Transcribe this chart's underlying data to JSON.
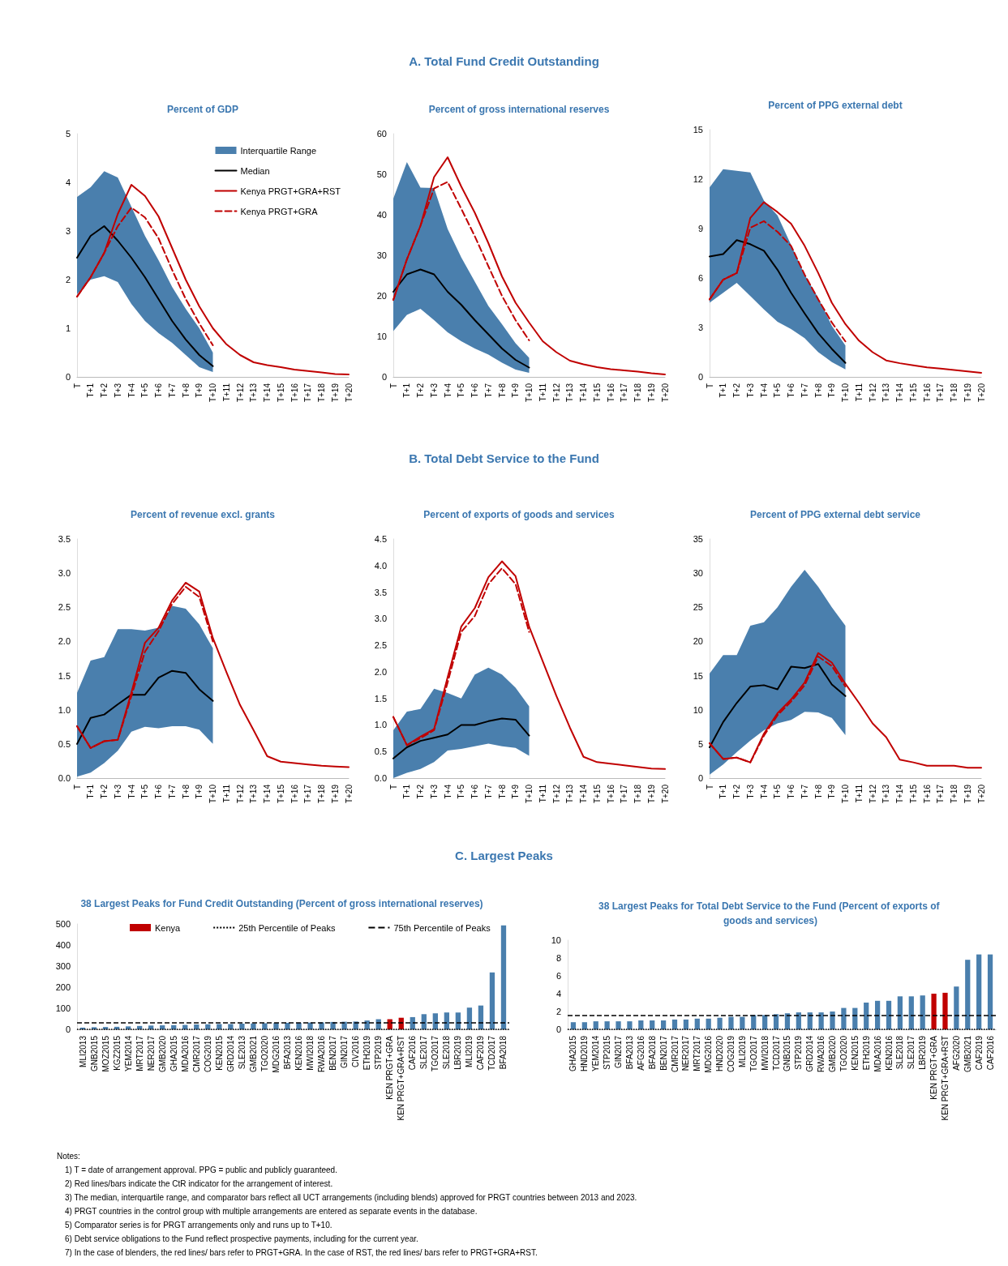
{
  "chart_data": [
    {
      "type": "line",
      "title": "Percent of GDP",
      "annotations": [
        "A. Total Fund Credit Outstanding"
      ],
      "legend": "top right",
      "categories": [
        "T",
        "T+1",
        "T+2",
        "T+3",
        "T+4",
        "T+5",
        "T+6",
        "T+7",
        "T+8",
        "T+9",
        "T+10",
        "T+11",
        "T+12",
        "T+13",
        "T+14",
        "T+15",
        "T+16",
        "T+17",
        "T+18",
        "T+19",
        "T+20"
      ],
      "ylim": [
        0,
        5
      ],
      "yticks": [
        0,
        1,
        2,
        3,
        4,
        5
      ],
      "series": [
        {
          "name": "Interquartile Range",
          "type": "area",
          "color": "#4a7fad",
          "values": [
            null,
            null,
            null,
            null,
            null,
            null,
            null,
            null,
            null,
            null,
            null,
            null,
            null,
            null,
            null,
            null,
            null,
            null,
            null,
            null,
            null
          ],
          "lower": [
            1.7,
            2.0,
            2.07,
            1.95,
            1.5,
            1.15,
            0.9,
            0.7,
            0.45,
            0.2,
            0.1,
            null,
            null,
            null,
            null,
            null,
            null,
            null,
            null,
            null,
            null
          ],
          "upper": [
            3.7,
            3.9,
            4.23,
            4.1,
            3.5,
            2.9,
            2.4,
            1.85,
            1.4,
            1.0,
            0.5,
            null,
            null,
            null,
            null,
            null,
            null,
            null,
            null,
            null,
            null
          ]
        },
        {
          "name": "Median",
          "type": "line",
          "color": "#000000",
          "values": [
            2.45,
            2.9,
            3.1,
            2.8,
            2.45,
            2.05,
            1.6,
            1.15,
            0.77,
            0.45,
            0.22,
            null,
            null,
            null,
            null,
            null,
            null,
            null,
            null,
            null,
            null
          ]
        },
        {
          "name": "Kenya PRGT+GRA+RST",
          "type": "line",
          "color": "#c00000",
          "values": [
            1.65,
            2.05,
            2.55,
            3.35,
            3.95,
            3.72,
            3.3,
            2.65,
            2.0,
            1.45,
            1.0,
            0.67,
            0.45,
            0.3,
            0.24,
            0.2,
            0.15,
            0.12,
            0.09,
            0.06,
            0.05
          ]
        },
        {
          "name": "Kenya PRGT+GRA",
          "type": "line",
          "color": "#c00000",
          "line_style": "dashed",
          "values": [
            1.65,
            2.05,
            2.55,
            3.1,
            3.48,
            3.28,
            2.85,
            2.2,
            1.6,
            1.1,
            0.65,
            null,
            null,
            null,
            null,
            null,
            null,
            null,
            null,
            null,
            null
          ]
        }
      ]
    },
    {
      "type": "line",
      "title": "Percent of gross international reserves",
      "categories": [
        "T",
        "T+1",
        "T+2",
        "T+3",
        "T+4",
        "T+5",
        "T+6",
        "T+7",
        "T+8",
        "T+9",
        "T+10",
        "T+11",
        "T+12",
        "T+13",
        "T+14",
        "T+15",
        "T+16",
        "T+17",
        "T+18",
        "T+19",
        "T+20"
      ],
      "ylim": [
        0,
        60
      ],
      "yticks": [
        0,
        10,
        20,
        30,
        40,
        50,
        60
      ],
      "series": [
        {
          "type": "area",
          "color": "#4a7fad",
          "values": [
            null,
            null,
            null,
            null,
            null,
            null,
            null,
            null,
            null,
            null,
            null,
            null,
            null,
            null,
            null,
            null,
            null,
            null,
            null,
            null,
            null
          ],
          "lower": [
            11.3,
            15.3,
            16.8,
            14,
            11,
            8.8,
            7,
            5.5,
            3.5,
            1.8,
            1.0,
            null,
            null,
            null,
            null,
            null,
            null,
            null,
            null,
            null,
            null
          ],
          "upper": [
            44,
            53,
            46.7,
            46.6,
            36.5,
            29.5,
            23.5,
            17.5,
            13,
            8.3,
            4.7,
            null,
            null,
            null,
            null,
            null,
            null,
            null,
            null,
            null,
            null
          ]
        },
        {
          "type": "line",
          "color": "#000000",
          "values": [
            21,
            25.3,
            26.5,
            25.3,
            21,
            17.8,
            14,
            10.5,
            7,
            4.2,
            2.3,
            null,
            null,
            null,
            null,
            null,
            null,
            null,
            null,
            null,
            null
          ]
        },
        {
          "type": "line",
          "color": "#c00000",
          "values": [
            19,
            29,
            37.3,
            49.3,
            54.2,
            47,
            40.5,
            33,
            24.8,
            18.3,
            13.4,
            8.8,
            6.1,
            4,
            3.1,
            2.4,
            1.9,
            1.6,
            1.3,
            0.9,
            0.6
          ]
        },
        {
          "type": "line",
          "color": "#c00000",
          "line_style": "dashed",
          "values": [
            19,
            29,
            37.3,
            46.5,
            48.1,
            41.5,
            34.7,
            27.3,
            20,
            14,
            9.0,
            null,
            null,
            null,
            null,
            null,
            null,
            null,
            null,
            null,
            null
          ]
        }
      ]
    },
    {
      "type": "line",
      "title": "Percent of PPG external debt",
      "categories": [
        "T",
        "T+1",
        "T+2",
        "T+3",
        "T+4",
        "T+5",
        "T+6",
        "T+7",
        "T+8",
        "T+9",
        "T+10",
        "T+11",
        "T+12",
        "T+13",
        "T+14",
        "T+15",
        "T+16",
        "T+17",
        "T+18",
        "T+19",
        "T+20"
      ],
      "ylim": [
        0,
        15
      ],
      "yticks": [
        0,
        3,
        6,
        9,
        12,
        15
      ],
      "series": [
        {
          "type": "area",
          "color": "#4a7fad",
          "values": [
            null,
            null,
            null,
            null,
            null,
            null,
            null,
            null,
            null,
            null,
            null,
            null,
            null,
            null,
            null,
            null,
            null,
            null,
            null,
            null,
            null
          ],
          "lower": [
            4.5,
            5.1,
            5.7,
            4.9,
            4.1,
            3.35,
            2.9,
            2.35,
            1.5,
            0.9,
            0.45,
            null,
            null,
            null,
            null,
            null,
            null,
            null,
            null,
            null,
            null
          ],
          "upper": [
            11.5,
            12.6,
            12.5,
            12.4,
            10.7,
            9.8,
            8.0,
            6.2,
            4.8,
            3.1,
            1.9,
            null,
            null,
            null,
            null,
            null,
            null,
            null,
            null,
            null,
            null
          ]
        },
        {
          "type": "line",
          "color": "#000000",
          "values": [
            7.3,
            7.45,
            8.3,
            8.05,
            7.65,
            6.5,
            5.1,
            3.85,
            2.65,
            1.7,
            0.85,
            null,
            null,
            null,
            null,
            null,
            null,
            null,
            null,
            null,
            null
          ]
        },
        {
          "type": "line",
          "color": "#c00000",
          "values": [
            4.7,
            5.9,
            6.3,
            9.65,
            10.6,
            10.0,
            9.3,
            7.95,
            6.3,
            4.5,
            3.2,
            2.2,
            1.5,
            1.0,
            0.83,
            0.7,
            0.58,
            0.5,
            0.42,
            0.33,
            0.25
          ]
        },
        {
          "type": "line",
          "color": "#c00000",
          "line_style": "dashed",
          "values": [
            4.7,
            5.9,
            6.3,
            9.05,
            9.45,
            8.8,
            7.95,
            6.2,
            4.7,
            3.3,
            2.15,
            null,
            null,
            null,
            null,
            null,
            null,
            null,
            null,
            null,
            null
          ]
        }
      ]
    },
    {
      "type": "line",
      "title": "Percent of revenue excl. grants",
      "annotations": [
        "B. Total Debt Service to the Fund"
      ],
      "categories": [
        "T",
        "T+1",
        "T+2",
        "T+3",
        "T+4",
        "T+5",
        "T+6",
        "T+7",
        "T+8",
        "T+9",
        "T+10",
        "T+11",
        "T+12",
        "T+13",
        "T+14",
        "T+15",
        "T+16",
        "T+17",
        "T+18",
        "T+19",
        "T+20"
      ],
      "ylim": [
        0,
        3.5
      ],
      "yticks": [
        {
          "value": 0,
          "label": "0.0"
        },
        {
          "value": 0.5,
          "label": "0.5"
        },
        {
          "value": 1,
          "label": "1.0"
        },
        {
          "value": 1.5,
          "label": "1.5"
        },
        {
          "value": 2,
          "label": "2.0"
        },
        {
          "value": 2.5,
          "label": "2.5"
        },
        {
          "value": 3,
          "label": "3.0"
        },
        {
          "value": 3.5,
          "label": "3.5"
        }
      ],
      "series": [
        {
          "type": "area",
          "color": "#4a7fad",
          "values": [
            null,
            null,
            null,
            null,
            null,
            null,
            null,
            null,
            null,
            null,
            null,
            null,
            null,
            null,
            null,
            null,
            null,
            null,
            null,
            null,
            null
          ],
          "lower": [
            0.02,
            0.08,
            0.22,
            0.4,
            0.68,
            0.75,
            0.73,
            0.76,
            0.76,
            0.71,
            0.5,
            null,
            null,
            null,
            null,
            null,
            null,
            null,
            null,
            null,
            null
          ],
          "upper": [
            1.25,
            1.72,
            1.77,
            2.18,
            2.18,
            2.16,
            2.2,
            2.52,
            2.48,
            2.25,
            1.9,
            null,
            null,
            null,
            null,
            null,
            null,
            null,
            null,
            null,
            null
          ]
        },
        {
          "type": "line",
          "color": "#000000",
          "values": [
            0.5,
            0.88,
            0.93,
            1.08,
            1.22,
            1.22,
            1.47,
            1.57,
            1.54,
            1.3,
            1.13,
            null,
            null,
            null,
            null,
            null,
            null,
            null,
            null,
            null,
            null
          ]
        },
        {
          "type": "line",
          "color": "#c00000",
          "values": [
            0.76,
            0.44,
            0.54,
            0.56,
            1.25,
            1.98,
            2.2,
            2.6,
            2.86,
            2.73,
            2.05,
            1.55,
            1.07,
            0.7,
            0.32,
            0.24,
            0.22,
            0.2,
            0.18,
            0.17,
            0.16
          ]
        },
        {
          "type": "line",
          "color": "#c00000",
          "line_style": "dashed",
          "values": [
            0.76,
            0.44,
            0.54,
            0.56,
            1.2,
            1.85,
            2.15,
            2.55,
            2.8,
            2.65,
            2.0,
            null,
            null,
            null,
            null,
            null,
            null,
            null,
            null,
            null,
            null
          ]
        }
      ]
    },
    {
      "type": "line",
      "title": "Percent of exports of goods and services",
      "categories": [
        "T",
        "T+1",
        "T+2",
        "T+3",
        "T+4",
        "T+5",
        "T+6",
        "T+7",
        "T+8",
        "T+9",
        "T+10",
        "T+11",
        "T+12",
        "T+13",
        "T+14",
        "T+15",
        "T+16",
        "T+17",
        "T+18",
        "T+19",
        "T+20"
      ],
      "ylim": [
        0,
        4.5
      ],
      "yticks": [
        {
          "value": 0,
          "label": "0.0"
        },
        {
          "value": 0.5,
          "label": "0.5"
        },
        {
          "value": 1,
          "label": "1.0"
        },
        {
          "value": 1.5,
          "label": "1.5"
        },
        {
          "value": 2,
          "label": "2.0"
        },
        {
          "value": 2.5,
          "label": "2.5"
        },
        {
          "value": 3,
          "label": "3.0"
        },
        {
          "value": 3.5,
          "label": "3.5"
        },
        {
          "value": 4,
          "label": "4.0"
        },
        {
          "value": 4.5,
          "label": "4.5"
        }
      ],
      "series": [
        {
          "type": "area",
          "color": "#4a7fad",
          "values": [
            null,
            null,
            null,
            null,
            null,
            null,
            null,
            null,
            null,
            null,
            null,
            null,
            null,
            null,
            null,
            null,
            null,
            null,
            null,
            null,
            null
          ],
          "lower": [
            0.0,
            0.1,
            0.17,
            0.3,
            0.52,
            0.55,
            0.6,
            0.65,
            0.6,
            0.57,
            0.42,
            null,
            null,
            null,
            null,
            null,
            null,
            null,
            null,
            null,
            null
          ],
          "upper": [
            0.9,
            1.25,
            1.3,
            1.68,
            1.6,
            1.5,
            1.95,
            2.08,
            1.95,
            1.7,
            1.35,
            null,
            null,
            null,
            null,
            null,
            null,
            null,
            null,
            null,
            null
          ]
        },
        {
          "type": "line",
          "color": "#000000",
          "values": [
            0.37,
            0.58,
            0.7,
            0.76,
            0.82,
            1.0,
            1.0,
            1.07,
            1.12,
            1.1,
            0.8,
            null,
            null,
            null,
            null,
            null,
            null,
            null,
            null,
            null,
            null
          ]
        },
        {
          "type": "line",
          "color": "#c00000",
          "values": [
            1.15,
            0.62,
            0.78,
            0.92,
            1.9,
            2.85,
            3.2,
            3.78,
            4.08,
            3.8,
            2.85,
            2.2,
            1.55,
            0.95,
            0.4,
            0.3,
            0.27,
            0.24,
            0.21,
            0.18,
            0.17
          ]
        },
        {
          "type": "line",
          "color": "#c00000",
          "line_style": "dashed",
          "values": [
            1.15,
            0.62,
            0.75,
            0.9,
            1.8,
            2.75,
            3.05,
            3.65,
            3.95,
            3.65,
            2.75,
            null,
            null,
            null,
            null,
            null,
            null,
            null,
            null,
            null,
            null
          ]
        }
      ]
    },
    {
      "type": "line",
      "title": "Percent of PPG external debt service",
      "categories": [
        "T",
        "T+1",
        "T+2",
        "T+3",
        "T+4",
        "T+5",
        "T+6",
        "T+7",
        "T+8",
        "T+9",
        "T+10",
        "T+11",
        "T+12",
        "T+13",
        "T+14",
        "T+15",
        "T+16",
        "T+17",
        "T+18",
        "T+19",
        "T+20"
      ],
      "ylim": [
        0,
        35
      ],
      "yticks": [
        0,
        5,
        10,
        15,
        20,
        25,
        30,
        35
      ],
      "series": [
        {
          "type": "area",
          "color": "#4a7fad",
          "values": [
            null,
            null,
            null,
            null,
            null,
            null,
            null,
            null,
            null,
            null,
            null,
            null,
            null,
            null,
            null,
            null,
            null,
            null,
            null,
            null,
            null
          ],
          "lower": [
            0.5,
            2,
            3.8,
            5.5,
            7,
            8,
            8.5,
            9.7,
            9.6,
            8.8,
            6.3,
            null,
            null,
            null,
            null,
            null,
            null,
            null,
            null,
            null,
            null
          ],
          "upper": [
            15.3,
            18,
            18,
            22.3,
            22.8,
            25,
            28,
            30.5,
            28,
            25,
            22.3,
            null,
            null,
            null,
            null,
            null,
            null,
            null,
            null,
            null,
            null
          ]
        },
        {
          "type": "line",
          "color": "#000000",
          "values": [
            4.5,
            8.2,
            11,
            13.4,
            13.6,
            13,
            16.3,
            16.1,
            16.7,
            13.7,
            12,
            null,
            null,
            null,
            null,
            null,
            null,
            null,
            null,
            null,
            null
          ]
        },
        {
          "type": "line",
          "color": "#c00000",
          "values": [
            5.1,
            2.8,
            3,
            2.3,
            6.5,
            9.5,
            11.5,
            14,
            18.3,
            16.9,
            13.8,
            11,
            8,
            6,
            2.7,
            2.3,
            1.8,
            1.8,
            1.8,
            1.5,
            1.5
          ]
        },
        {
          "type": "line",
          "color": "#c00000",
          "line_style": "dashed",
          "values": [
            5.1,
            2.8,
            3,
            2.3,
            6.2,
            9.2,
            11.2,
            13.6,
            17.8,
            16.4,
            13.4,
            null,
            null,
            null,
            null,
            null,
            null,
            null,
            null,
            null,
            null
          ]
        }
      ]
    },
    {
      "type": "bar",
      "title": "38 Largest Peaks for Fund Credit Outstanding (Percent of gross international reserves)",
      "annotations": [
        "C. Largest Peaks"
      ],
      "legend": "top",
      "categories": [
        "MLI2013",
        "GNB2015",
        "MOZ2015",
        "KGZ2015",
        "YEM2014",
        "MRT2017",
        "NER2017",
        "GMB2020",
        "GHA2015",
        "MDA2016",
        "CMR2017",
        "COG2019",
        "KEN2015",
        "GRD2014",
        "SLE2013",
        "GMB2021",
        "TGO2020",
        "MDG2016",
        "BFA2013",
        "KEN2016",
        "MWI2018",
        "RWA2016",
        "BEN2017",
        "GIN2017",
        "CIV2016",
        "ETH2019",
        "STP2019",
        "KEN PRGT+GRA",
        "KEN PRGT+GRA+RST",
        "CAF2016",
        "SLE2017",
        "TGO2017",
        "SLE2018",
        "LBR2019",
        "MLI2019",
        "CAF2019",
        "TCD2017",
        "BFA2018"
      ],
      "ylim": [
        0,
        500
      ],
      "yticks": [
        0,
        100,
        200,
        300,
        400,
        500
      ],
      "series": [
        {
          "color": "#4a7fad",
          "values": [
            8,
            10,
            11,
            12,
            14,
            16,
            18,
            19,
            20,
            21,
            23,
            24,
            25,
            25,
            27,
            28,
            29,
            30,
            31,
            31,
            32,
            33,
            35,
            36,
            37,
            42,
            48,
            null,
            null,
            58,
            72,
            76,
            80,
            80,
            103,
            113,
            270,
            493
          ]
        },
        {
          "name": "Kenya",
          "color": "#c00000",
          "values": [
            null,
            null,
            null,
            null,
            null,
            null,
            null,
            null,
            null,
            null,
            null,
            null,
            null,
            null,
            null,
            null,
            null,
            null,
            null,
            null,
            null,
            null,
            null,
            null,
            null,
            null,
            null,
            48,
            55,
            null,
            null,
            null,
            null,
            null,
            null,
            null,
            null,
            null
          ]
        }
      ],
      "ref_lines": [
        {
          "axis": "y",
          "value": 0,
          "label": "25th Percentile of Peaks",
          "line_style": "dotted",
          "color": "#000000"
        },
        {
          "axis": "y",
          "value": 30,
          "label": "75th Percentile of Peaks",
          "line_style": "dashed",
          "color": "#000000"
        }
      ]
    },
    {
      "type": "bar",
      "title": "38 Largest Peaks for Total Debt Service to the Fund (Percent of exports of goods and services)",
      "annotations": [
        "Notes:",
        "1) T = date of arrangement approval. PPG = public and publicly guaranteed.",
        "2) Red lines/bars indicate the CtR indicator for the arrangement of interest.",
        "3) The median, interquartile range, and comparator bars reflect all UCT arrangements (including blends) approved for PRGT countries between 2013 and 2023.",
        "4) PRGT countries in the control group with multiple arrangements are entered as separate events in the database.",
        "5) Comparator series is for PRGT arrangements only and runs up to T+10.",
        "6) Debt service obligations to the Fund reflect prospective payments, including for the current year.",
        "7) In the case of blenders, the red lines/ bars refer to PRGT+GRA. In the case of RST, the red lines/ bars refer to PRGT+GRA+RST."
      ],
      "categories": [
        "GHA2015",
        "HND2019",
        "YEM2014",
        "STP2015",
        "GIN2017",
        "BFA2013",
        "AFG2016",
        "BFA2018",
        "BEN2017",
        "CMR2017",
        "NER2017",
        "MRT2017",
        "MDG2016",
        "HND2020",
        "COG2019",
        "MLI2019",
        "TGO2017",
        "MWI2018",
        "TCD2017",
        "GNB2015",
        "STP2019",
        "GRD2014",
        "RWA2016",
        "GMB2020",
        "TGO2020",
        "KEN2015",
        "ETH2019",
        "MDA2016",
        "KEN2016",
        "SLE2018",
        "SLE2017",
        "LBR2019",
        "KEN PRGT+GRA",
        "KEN PRGT+GRA+RST",
        "AFG2020",
        "GMB2021",
        "CAF2019",
        "CAF2016"
      ],
      "ylim": [
        0,
        10
      ],
      "yticks": [
        0,
        2,
        4,
        6,
        8,
        10
      ],
      "series": [
        {
          "color": "#4a7fad",
          "values": [
            0.8,
            0.8,
            0.9,
            0.9,
            0.9,
            0.9,
            1.0,
            1.0,
            1.0,
            1.1,
            1.1,
            1.2,
            1.2,
            1.3,
            1.4,
            1.4,
            1.6,
            1.6,
            1.7,
            1.8,
            1.9,
            1.9,
            1.9,
            2.0,
            2.4,
            2.4,
            3.0,
            3.2,
            3.2,
            3.7,
            3.7,
            3.8,
            null,
            null,
            4.8,
            7.8,
            8.4,
            8.4
          ]
        },
        {
          "color": "#c00000",
          "values": [
            null,
            null,
            null,
            null,
            null,
            null,
            null,
            null,
            null,
            null,
            null,
            null,
            null,
            null,
            null,
            null,
            null,
            null,
            null,
            null,
            null,
            null,
            null,
            null,
            null,
            null,
            null,
            null,
            null,
            null,
            null,
            null,
            4.0,
            4.1,
            null,
            null,
            null,
            null
          ]
        }
      ],
      "ref_lines": [
        {
          "axis": "y",
          "value": 0,
          "line_style": "dotted",
          "color": "#000000"
        },
        {
          "axis": "y",
          "value": 1.6,
          "line_style": "dashed",
          "color": "#000000"
        }
      ]
    }
  ]
}
